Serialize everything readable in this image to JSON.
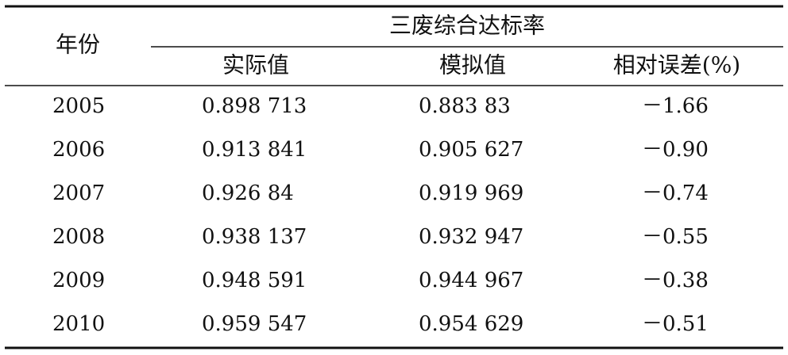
{
  "table": {
    "header": {
      "year": "年份",
      "group": "三废综合达标率",
      "columns": [
        "实际值",
        "模拟值",
        "相对误差(%)"
      ]
    },
    "rows": [
      [
        "2005",
        "0.898 713",
        "0.883 83",
        "－1.66"
      ],
      [
        "2006",
        "0.913 841",
        "0.905 627",
        "－0.90"
      ],
      [
        "2007",
        "0.926 84",
        "0.919 969",
        "－0.74"
      ],
      [
        "2008",
        "0.938 137",
        "0.932 947",
        "－0.55"
      ],
      [
        "2009",
        "0.948 591",
        "0.944 967",
        "－0.38"
      ],
      [
        "2010",
        "0.959 547",
        "0.954 629",
        "－0.51"
      ]
    ]
  }
}
